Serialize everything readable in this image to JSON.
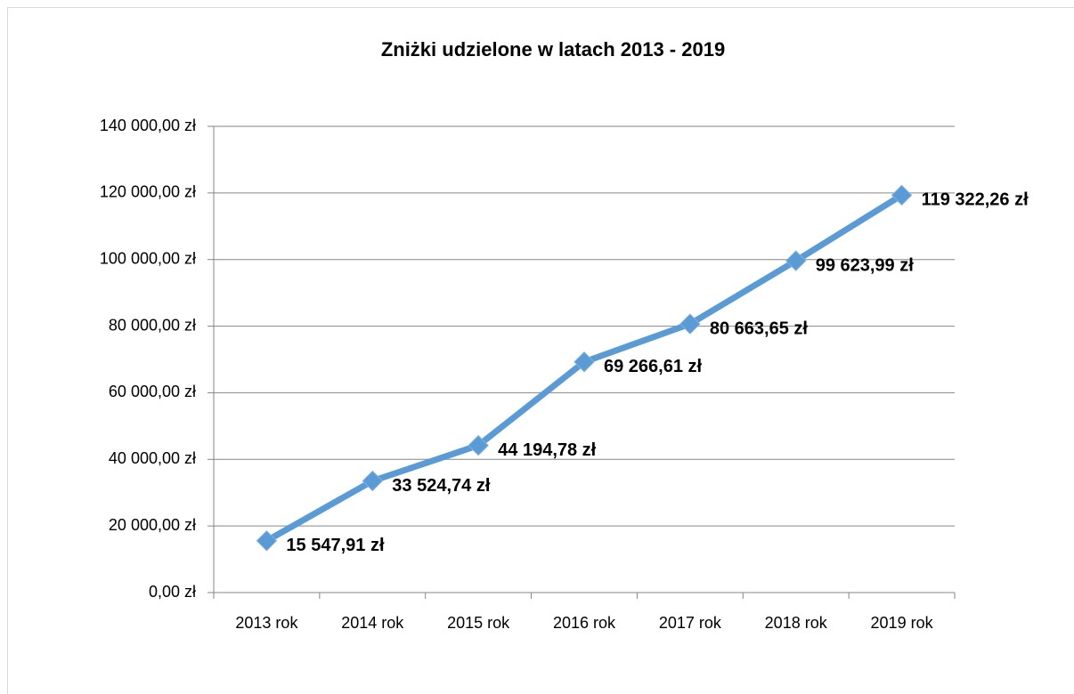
{
  "chart_data": {
    "type": "line",
    "title": "Zniżki udzielone w latach 2013 - 2019",
    "categories": [
      "2013 rok",
      "2014 rok",
      "2015 rok",
      "2016 rok",
      "2017 rok",
      "2018 rok",
      "2019 rok"
    ],
    "series": [
      {
        "name": "Zniżki",
        "color": "#5b9bd5",
        "values": [
          15547.91,
          33524.74,
          44194.78,
          69266.61,
          80663.65,
          99623.99,
          119322.26
        ],
        "value_labels": [
          "15 547,91 zł",
          "33 524,74 zł",
          "44 194,78 zł",
          "69 266,61 zł",
          "80 663,65 zł",
          "99 623,99 zł",
          "119 322,26 zł"
        ]
      }
    ],
    "ylim": [
      0,
      140000
    ],
    "yticks": [
      {
        "value": 0,
        "label": "0,00 zł"
      },
      {
        "value": 20000,
        "label": "20 000,00 zł"
      },
      {
        "value": 40000,
        "label": "40 000,00 zł"
      },
      {
        "value": 60000,
        "label": "60 000,00 zł"
      },
      {
        "value": 80000,
        "label": "80 000,00 zł"
      },
      {
        "value": 100000,
        "label": "100 000,00 zł"
      },
      {
        "value": 120000,
        "label": "120 000,00 zł"
      },
      {
        "value": 140000,
        "label": "140 000,00 zł"
      }
    ],
    "grid": true
  }
}
